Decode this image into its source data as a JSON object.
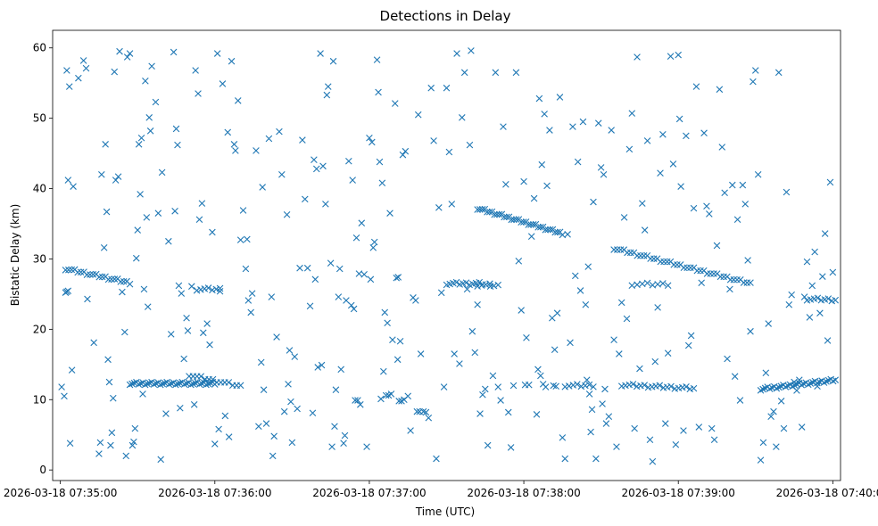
{
  "chart_data": {
    "type": "scatter",
    "title": "Detections in Delay",
    "xlabel": "Time (UTC)",
    "ylabel": "Bistatic Delay (km)",
    "x_unit": "seconds after 2026-03-18 07:35:00",
    "xlim": [
      -3,
      303
    ],
    "ylim": [
      -1.5,
      62.5
    ],
    "x_ticks": [
      {
        "value": 0,
        "label": "2026-03-18 07:35:00"
      },
      {
        "value": 60,
        "label": "2026-03-18 07:36:00"
      },
      {
        "value": 120,
        "label": "2026-03-18 07:37:00"
      },
      {
        "value": 180,
        "label": "2026-03-18 07:38:00"
      },
      {
        "value": 240,
        "label": "2026-03-18 07:39:00"
      },
      {
        "value": 300,
        "label": "2026-03-18 07:40:00"
      }
    ],
    "y_ticks": [
      0,
      10,
      20,
      30,
      40,
      50,
      60
    ],
    "marker": "x",
    "color": "#1f77b4",
    "tracks": [
      {
        "name": "track-a",
        "t_start": 2,
        "t_end": 27,
        "delay_start": 28.6,
        "delay_end": 26.6,
        "count": 22
      },
      {
        "name": "track-b",
        "t_start": 2,
        "t_end": 3,
        "delay_start": 25.4,
        "delay_end": 25.4,
        "count": 3
      },
      {
        "name": "track-c",
        "t_start": 27,
        "t_end": 60,
        "delay_start": 12.3,
        "delay_end": 12.3,
        "count": 40
      },
      {
        "name": "track-d",
        "t_start": 50,
        "t_end": 70,
        "delay_start": 13.5,
        "delay_end": 11.9,
        "count": 14
      },
      {
        "name": "track-e",
        "t_start": 53,
        "t_end": 62,
        "delay_start": 25.7,
        "delay_end": 25.7,
        "count": 7
      },
      {
        "name": "track-f",
        "t_start": 162,
        "t_end": 195,
        "delay_start": 37.2,
        "delay_end": 33.6,
        "count": 36
      },
      {
        "name": "track-g",
        "t_start": 150,
        "t_end": 164,
        "delay_start": 26.5,
        "delay_end": 26.5,
        "count": 12
      },
      {
        "name": "track-h",
        "t_start": 215,
        "t_end": 268,
        "delay_start": 31.5,
        "delay_end": 26.5,
        "count": 42
      },
      {
        "name": "track-i",
        "t_start": 218,
        "t_end": 246,
        "delay_start": 12.1,
        "delay_end": 11.6,
        "count": 20
      },
      {
        "name": "track-j",
        "t_start": 272,
        "t_end": 301,
        "delay_start": 11.5,
        "delay_end": 12.8,
        "count": 34
      },
      {
        "name": "track-k",
        "t_start": 290,
        "t_end": 301,
        "delay_start": 24.3,
        "delay_end": 24.2,
        "count": 9
      },
      {
        "name": "track-l",
        "t_start": 222,
        "t_end": 236,
        "delay_start": 26.4,
        "delay_end": 26.4,
        "count": 8
      },
      {
        "name": "track-m",
        "t_start": 196,
        "t_end": 207,
        "delay_start": 12.0,
        "delay_end": 12.0,
        "count": 8
      },
      {
        "name": "track-n",
        "t_start": 162,
        "t_end": 170,
        "delay_start": 26.3,
        "delay_end": 26.3,
        "count": 6
      }
    ],
    "scatter_points": [
      [
        0.5,
        11.8
      ],
      [
        1.5,
        10.5
      ],
      [
        2.5,
        56.8
      ],
      [
        3,
        41.2
      ],
      [
        3.5,
        54.5
      ],
      [
        3.8,
        3.8
      ],
      [
        4.5,
        14.2
      ],
      [
        5,
        40.3
      ],
      [
        7,
        55.7
      ],
      [
        9,
        58.2
      ],
      [
        10,
        57.1
      ],
      [
        10.5,
        24.3
      ],
      [
        13,
        18.1
      ],
      [
        15,
        2.3
      ],
      [
        15.5,
        3.9
      ],
      [
        16,
        42
      ],
      [
        17,
        31.6
      ],
      [
        17.5,
        46.3
      ],
      [
        18,
        36.7
      ],
      [
        18.5,
        15.7
      ],
      [
        19,
        12.5
      ],
      [
        19.5,
        3.5
      ],
      [
        20,
        5.3
      ],
      [
        20.5,
        10.2
      ],
      [
        21,
        56.6
      ],
      [
        21.5,
        41.2
      ],
      [
        22.5,
        41.7
      ],
      [
        23,
        59.5
      ],
      [
        24,
        25.3
      ],
      [
        25,
        19.6
      ],
      [
        25.5,
        2
      ],
      [
        26,
        58.7
      ],
      [
        27,
        59.2
      ],
      [
        28,
        3.5
      ],
      [
        28.5,
        4
      ],
      [
        29,
        5.9
      ],
      [
        29.5,
        30.1
      ],
      [
        30,
        34.1
      ],
      [
        30.5,
        46.3
      ],
      [
        31,
        39.2
      ],
      [
        31.5,
        47.2
      ],
      [
        32,
        10.8
      ],
      [
        32.5,
        25.7
      ],
      [
        33,
        55.3
      ],
      [
        33.5,
        35.9
      ],
      [
        34,
        23.2
      ],
      [
        34.5,
        50.1
      ],
      [
        35,
        48.2
      ],
      [
        35.5,
        57.4
      ],
      [
        37,
        52.3
      ],
      [
        38,
        36.5
      ],
      [
        39,
        1.5
      ],
      [
        39.5,
        42.3
      ],
      [
        41,
        8
      ],
      [
        42,
        32.5
      ],
      [
        43,
        19.3
      ],
      [
        44,
        59.4
      ],
      [
        44.5,
        36.8
      ],
      [
        45,
        48.5
      ],
      [
        45.5,
        46.2
      ],
      [
        46,
        26.2
      ],
      [
        46.5,
        8.8
      ],
      [
        47,
        25.1
      ],
      [
        48,
        15.8
      ],
      [
        49,
        21.6
      ],
      [
        49.5,
        19.8
      ],
      [
        51,
        26.1
      ],
      [
        52,
        9.3
      ],
      [
        52.5,
        56.8
      ],
      [
        53.5,
        53.5
      ],
      [
        54,
        35.6
      ],
      [
        55,
        37.9
      ],
      [
        55.5,
        19.5
      ],
      [
        56,
        12.8
      ],
      [
        57,
        20.8
      ],
      [
        58,
        17.8
      ],
      [
        59,
        33.8
      ],
      [
        60,
        3.7
      ],
      [
        61,
        59.2
      ],
      [
        61.5,
        5.8
      ],
      [
        62,
        25.4
      ],
      [
        63,
        54.9
      ],
      [
        64,
        7.7
      ],
      [
        65,
        48
      ],
      [
        65.5,
        4.7
      ],
      [
        66.5,
        58.1
      ],
      [
        67.5,
        46.3
      ],
      [
        68,
        45.4
      ],
      [
        69,
        52.5
      ],
      [
        70,
        32.7
      ],
      [
        71,
        36.9
      ],
      [
        72,
        28.6
      ],
      [
        72.5,
        32.8
      ],
      [
        73,
        24.1
      ],
      [
        74,
        22.4
      ],
      [
        74.5,
        25.1
      ],
      [
        76,
        45.4
      ],
      [
        77,
        6.2
      ],
      [
        78,
        15.3
      ],
      [
        78.5,
        40.2
      ],
      [
        79,
        11.4
      ],
      [
        80,
        6.6
      ],
      [
        81,
        47.1
      ],
      [
        82,
        24.6
      ],
      [
        82.5,
        2
      ],
      [
        83,
        4.8
      ],
      [
        84,
        18.9
      ],
      [
        85,
        48.1
      ],
      [
        86,
        42
      ],
      [
        87,
        8.3
      ],
      [
        88,
        36.3
      ],
      [
        88.5,
        12.2
      ],
      [
        89,
        17
      ],
      [
        89.5,
        9.7
      ],
      [
        90,
        3.9
      ],
      [
        91,
        16.1
      ],
      [
        92,
        8.7
      ],
      [
        93,
        28.7
      ],
      [
        94,
        46.9
      ],
      [
        95,
        38.5
      ],
      [
        96,
        28.7
      ],
      [
        97,
        23.3
      ],
      [
        98,
        8.1
      ],
      [
        98.5,
        44.1
      ],
      [
        99,
        27.1
      ],
      [
        99.5,
        42.8
      ],
      [
        100,
        14.6
      ],
      [
        101,
        59.2
      ],
      [
        101.5,
        14.9
      ],
      [
        102,
        43.2
      ],
      [
        103,
        37.8
      ],
      [
        103.5,
        53.3
      ],
      [
        104,
        54.5
      ],
      [
        105,
        29.4
      ],
      [
        105.5,
        3.3
      ],
      [
        106,
        58.1
      ],
      [
        106.5,
        6.2
      ],
      [
        107,
        11.4
      ],
      [
        108,
        24.6
      ],
      [
        108.5,
        28.6
      ],
      [
        109,
        14.3
      ],
      [
        110,
        3.8
      ],
      [
        110.5,
        4.9
      ],
      [
        111,
        24.1
      ],
      [
        112,
        43.9
      ],
      [
        113,
        23.4
      ],
      [
        113.5,
        41.2
      ],
      [
        114,
        22.9
      ],
      [
        115,
        33
      ],
      [
        116,
        27.9
      ],
      [
        117,
        35.1
      ],
      [
        118,
        27.8
      ],
      [
        119,
        3.3
      ],
      [
        120,
        47.2
      ],
      [
        121,
        46.6
      ],
      [
        121.5,
        31.6
      ],
      [
        122,
        32.4
      ],
      [
        123,
        58.3
      ],
      [
        123.5,
        53.7
      ],
      [
        124,
        43.8
      ],
      [
        125,
        40.8
      ],
      [
        125.5,
        14
      ],
      [
        126,
        22.4
      ],
      [
        127,
        20.9
      ],
      [
        128,
        36.5
      ],
      [
        129,
        18.5
      ],
      [
        130,
        52.1
      ],
      [
        131,
        15.7
      ],
      [
        132,
        18.3
      ],
      [
        133,
        44.8
      ],
      [
        134,
        45.3
      ],
      [
        135,
        10.5
      ],
      [
        136,
        5.6
      ],
      [
        137,
        24.5
      ],
      [
        138,
        24.1
      ],
      [
        139,
        50.5
      ],
      [
        140,
        16.5
      ],
      [
        141,
        8.3
      ],
      [
        142,
        8.2
      ],
      [
        143,
        7.4
      ],
      [
        144,
        54.3
      ],
      [
        145,
        46.8
      ],
      [
        146,
        1.6
      ],
      [
        147,
        37.3
      ],
      [
        148,
        25.2
      ],
      [
        149,
        11.8
      ],
      [
        150,
        54.3
      ],
      [
        151,
        45.2
      ],
      [
        152,
        37.8
      ],
      [
        153,
        16.5
      ],
      [
        154,
        59.2
      ],
      [
        155,
        15.1
      ],
      [
        156,
        50.1
      ],
      [
        157,
        56.5
      ],
      [
        158,
        25.7
      ],
      [
        159,
        46.2
      ],
      [
        159.5,
        59.6
      ],
      [
        160,
        19.7
      ],
      [
        161,
        16.7
      ],
      [
        162,
        23.5
      ],
      [
        163,
        8
      ],
      [
        164,
        10.7
      ],
      [
        165,
        11.5
      ],
      [
        166,
        3.5
      ],
      [
        167,
        26.1
      ],
      [
        168,
        13.4
      ],
      [
        169,
        56.5
      ],
      [
        170,
        11.8
      ],
      [
        171,
        9.9
      ],
      [
        172,
        48.8
      ],
      [
        173,
        40.6
      ],
      [
        174,
        8.2
      ],
      [
        175,
        3.2
      ],
      [
        176,
        12
      ],
      [
        177,
        56.5
      ],
      [
        178,
        29.7
      ],
      [
        179,
        22.7
      ],
      [
        180,
        41
      ],
      [
        181,
        18.8
      ],
      [
        182,
        12.1
      ],
      [
        183,
        33.2
      ],
      [
        184,
        38.6
      ],
      [
        185,
        7.9
      ],
      [
        186,
        52.8
      ],
      [
        187,
        43.4
      ],
      [
        188,
        50.6
      ],
      [
        189,
        40.4
      ],
      [
        190,
        48.3
      ],
      [
        191,
        21.6
      ],
      [
        192,
        17.1
      ],
      [
        193,
        22.3
      ],
      [
        194,
        53
      ],
      [
        195,
        4.6
      ],
      [
        196,
        1.6
      ],
      [
        197,
        33.5
      ],
      [
        198,
        18.1
      ],
      [
        199,
        48.8
      ],
      [
        200,
        27.6
      ],
      [
        201,
        43.8
      ],
      [
        202,
        25.5
      ],
      [
        203,
        49.5
      ],
      [
        204,
        23.5
      ],
      [
        205,
        28.9
      ],
      [
        206,
        5.4
      ],
      [
        207,
        38.1
      ],
      [
        208,
        1.6
      ],
      [
        209,
        49.3
      ],
      [
        210,
        43
      ],
      [
        211,
        42
      ],
      [
        212,
        6.6
      ],
      [
        213,
        7.6
      ],
      [
        214,
        48.3
      ],
      [
        215,
        18.5
      ],
      [
        216,
        3.3
      ],
      [
        217,
        16.5
      ],
      [
        218,
        23.8
      ],
      [
        219,
        35.9
      ],
      [
        220,
        21.5
      ],
      [
        221,
        45.6
      ],
      [
        222,
        50.7
      ],
      [
        223,
        5.9
      ],
      [
        224,
        58.7
      ],
      [
        225,
        14.4
      ],
      [
        226,
        37.9
      ],
      [
        227,
        34.1
      ],
      [
        228,
        46.8
      ],
      [
        229,
        4.3
      ],
      [
        230,
        1.2
      ],
      [
        231,
        15.4
      ],
      [
        232,
        23.1
      ],
      [
        233,
        42.2
      ],
      [
        234,
        47.7
      ],
      [
        235,
        6.6
      ],
      [
        236,
        16.6
      ],
      [
        237,
        58.8
      ],
      [
        238,
        43.5
      ],
      [
        239,
        3.6
      ],
      [
        240,
        59
      ],
      [
        240.5,
        49.9
      ],
      [
        241,
        40.3
      ],
      [
        242,
        5.6
      ],
      [
        243,
        47.5
      ],
      [
        244,
        17.7
      ],
      [
        245,
        19.1
      ],
      [
        246,
        37.2
      ],
      [
        247,
        54.5
      ],
      [
        248,
        6.1
      ],
      [
        249,
        26.6
      ],
      [
        250,
        47.9
      ],
      [
        251,
        37.5
      ],
      [
        252,
        36.4
      ],
      [
        253,
        5.9
      ],
      [
        254,
        4.3
      ],
      [
        255,
        31.9
      ],
      [
        256,
        54.1
      ],
      [
        257,
        45.9
      ],
      [
        258,
        39.4
      ],
      [
        259,
        15.8
      ],
      [
        260,
        25.7
      ],
      [
        261,
        40.5
      ],
      [
        262,
        13.3
      ],
      [
        263,
        35.6
      ],
      [
        264,
        9.9
      ],
      [
        265,
        40.5
      ],
      [
        266,
        37.8
      ],
      [
        267,
        29.8
      ],
      [
        268,
        19.7
      ],
      [
        269,
        55.2
      ],
      [
        270,
        56.8
      ],
      [
        271,
        42
      ],
      [
        272,
        1.4
      ],
      [
        273,
        3.9
      ],
      [
        274,
        13.8
      ],
      [
        275,
        20.8
      ],
      [
        276,
        7.6
      ],
      [
        277,
        8.3
      ],
      [
        278,
        3.3
      ],
      [
        279,
        56.5
      ],
      [
        280,
        9.8
      ],
      [
        281,
        5.9
      ],
      [
        282,
        39.5
      ],
      [
        283,
        23.5
      ],
      [
        284,
        24.9
      ],
      [
        285,
        12.5
      ],
      [
        286,
        11.3
      ],
      [
        287,
        12.8
      ],
      [
        288,
        6.1
      ],
      [
        289,
        24.6
      ],
      [
        290,
        29.6
      ],
      [
        291,
        21.7
      ],
      [
        292,
        26.2
      ],
      [
        293,
        31
      ],
      [
        294,
        11.9
      ],
      [
        295,
        22.3
      ],
      [
        296,
        27.5
      ],
      [
        297,
        33.6
      ],
      [
        298,
        18.4
      ],
      [
        299,
        40.9
      ],
      [
        300,
        28.1
      ],
      [
        180.5,
        12.1
      ],
      [
        185.5,
        14.3
      ],
      [
        186.5,
        13.4
      ],
      [
        187.5,
        12.2
      ],
      [
        188.5,
        11.8
      ],
      [
        191.5,
        12
      ],
      [
        192.5,
        11.9
      ],
      [
        204.5,
        12.8
      ],
      [
        205.5,
        10.8
      ],
      [
        206.5,
        8.6
      ],
      [
        210.5,
        9.4
      ],
      [
        211.5,
        11.5
      ],
      [
        114.5,
        9.9
      ],
      [
        115.5,
        9.9
      ],
      [
        116.5,
        9.3
      ],
      [
        124.5,
        10.1
      ],
      [
        126.5,
        10.6
      ],
      [
        127.5,
        10.6
      ],
      [
        128.5,
        10.8
      ],
      [
        131.5,
        9.8
      ],
      [
        132.5,
        9.8
      ],
      [
        133.5,
        10
      ],
      [
        138.5,
        8.3
      ],
      [
        139.5,
        8.3
      ],
      [
        120.5,
        27.1
      ],
      [
        130.5,
        27.3
      ],
      [
        131.2,
        27.4
      ]
    ]
  }
}
